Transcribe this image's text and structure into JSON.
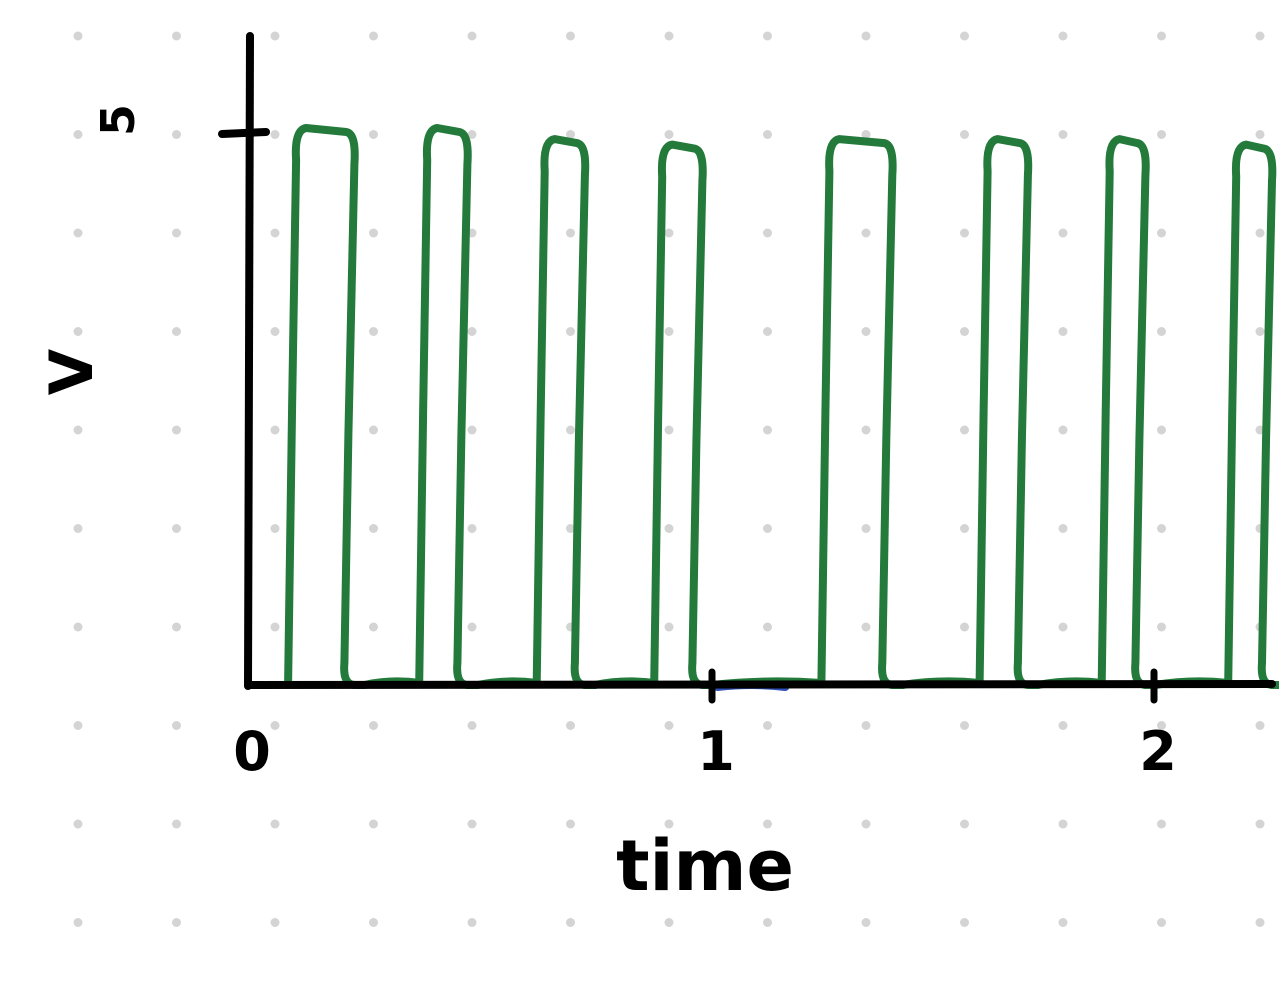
{
  "chart_data": {
    "type": "line",
    "style": "hand-drawn on dotted grid",
    "xlabel": "time",
    "ylabel": "V",
    "x_ticks": [
      {
        "value": 0,
        "label": "0"
      },
      {
        "value": 1,
        "label": "1"
      },
      {
        "value": 2,
        "label": "2"
      }
    ],
    "y_ticks": [
      {
        "value": 5,
        "label": "5"
      }
    ],
    "xlim": [
      0,
      2.37
    ],
    "ylim": [
      0,
      5.5
    ],
    "grid": "dots",
    "series": [
      {
        "color": "#237a3a",
        "shape": "square-wave",
        "low": 0,
        "pulses": [
          {
            "start": 0.04,
            "end": 0.2,
            "high": 5.0
          },
          {
            "start": 0.33,
            "end": 0.45,
            "high": 5.0
          },
          {
            "start": 0.59,
            "end": 0.71,
            "high": 4.9
          },
          {
            "start": 0.85,
            "end": 0.97,
            "high": 4.85
          },
          {
            "start": 1.22,
            "end": 1.39,
            "high": 4.9
          },
          {
            "start": 1.57,
            "end": 1.69,
            "high": 4.9
          },
          {
            "start": 1.84,
            "end": 1.95,
            "high": 4.9
          },
          {
            "start": 2.12,
            "end": 2.23,
            "high": 4.85
          }
        ]
      },
      {
        "color": "#2f4fb8",
        "shape": "segment",
        "points": [
          [
            0.99,
            0
          ],
          [
            1.14,
            0
          ]
        ]
      }
    ]
  }
}
